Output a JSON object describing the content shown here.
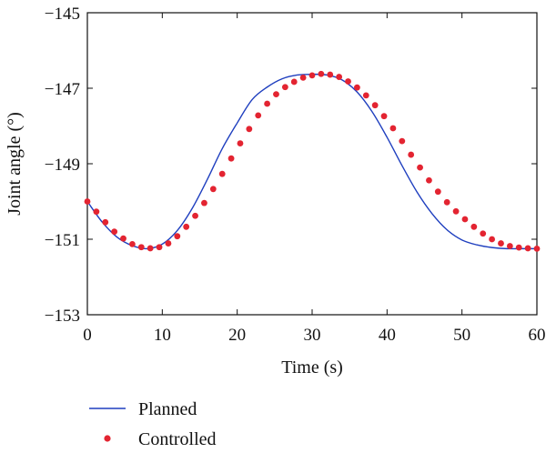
{
  "chart_data": {
    "type": "line",
    "xlabel": "Time (s)",
    "ylabel": "Joint angle (°)",
    "xlim": [
      0,
      60
    ],
    "ylim": [
      -153,
      -145
    ],
    "x_ticks": [
      0,
      10,
      20,
      30,
      40,
      50,
      60
    ],
    "x_tick_labels": [
      "0",
      "10",
      "20",
      "30",
      "40",
      "50",
      "60"
    ],
    "y_ticks": [
      -145,
      -147,
      -149,
      -151,
      -153
    ],
    "y_tick_labels": [
      "−145",
      "−147",
      "−149",
      "−151",
      "−153"
    ],
    "grid": false,
    "legend_position": "bottom-left, below plot",
    "series": [
      {
        "name": "Planned",
        "style": "line",
        "color": "#1f3fbf",
        "x": [
          0,
          2,
          4,
          6,
          8,
          10,
          12,
          14,
          16,
          18,
          20,
          22,
          24,
          26,
          28,
          30,
          32,
          34,
          36,
          38,
          40,
          42,
          44,
          46,
          48,
          50,
          52,
          54,
          56,
          58,
          60
        ],
        "y": [
          -150.0,
          -150.55,
          -150.95,
          -151.17,
          -151.25,
          -151.13,
          -150.77,
          -150.18,
          -149.42,
          -148.6,
          -147.92,
          -147.3,
          -146.97,
          -146.75,
          -146.65,
          -146.63,
          -146.65,
          -146.78,
          -147.1,
          -147.62,
          -148.3,
          -149.05,
          -149.75,
          -150.32,
          -150.75,
          -151.02,
          -151.15,
          -151.22,
          -151.25,
          -151.25,
          -151.25
        ]
      },
      {
        "name": "Controlled",
        "style": "markers",
        "color": "#e32431",
        "x": [
          0,
          1.2,
          2.4,
          3.6,
          4.8,
          6,
          7.2,
          8.4,
          9.6,
          10.8,
          12,
          13.2,
          14.4,
          15.6,
          16.8,
          18,
          19.2,
          20.4,
          21.6,
          22.8,
          24,
          25.2,
          26.4,
          27.6,
          28.8,
          30,
          31.2,
          32.4,
          33.6,
          34.8,
          36,
          37.2,
          38.4,
          39.6,
          40.8,
          42,
          43.2,
          44.4,
          45.6,
          46.8,
          48,
          49.2,
          50.4,
          51.6,
          52.8,
          54,
          55.2,
          56.4,
          57.6,
          58.8,
          60
        ],
        "y": [
          -150.0,
          -150.27,
          -150.55,
          -150.8,
          -150.98,
          -151.13,
          -151.21,
          -151.24,
          -151.21,
          -151.11,
          -150.92,
          -150.67,
          -150.38,
          -150.04,
          -149.67,
          -149.27,
          -148.86,
          -148.46,
          -148.08,
          -147.72,
          -147.41,
          -147.16,
          -146.97,
          -146.83,
          -146.72,
          -146.66,
          -146.62,
          -146.64,
          -146.7,
          -146.82,
          -146.98,
          -147.19,
          -147.45,
          -147.74,
          -148.06,
          -148.4,
          -148.76,
          -149.1,
          -149.44,
          -149.74,
          -150.02,
          -150.26,
          -150.47,
          -150.67,
          -150.85,
          -151.0,
          -151.11,
          -151.18,
          -151.22,
          -151.24,
          -151.25
        ]
      }
    ]
  }
}
